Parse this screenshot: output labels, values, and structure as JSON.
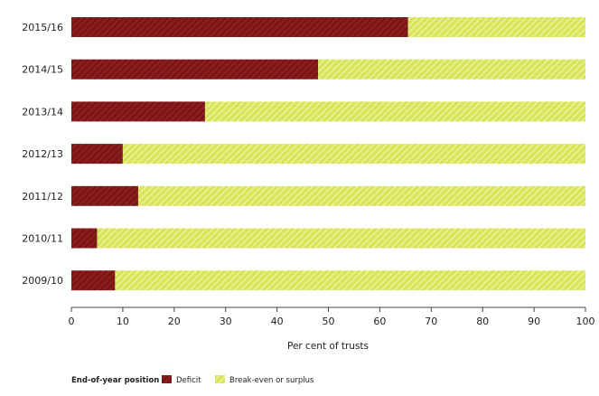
{
  "chart_data": {
    "type": "bar",
    "orientation": "horizontal",
    "stacked": true,
    "categories": [
      "2015/16",
      "2014/15",
      "2013/14",
      "2012/13",
      "2011/12",
      "2010/11",
      "2009/10"
    ],
    "series": [
      {
        "name": "Deficit",
        "values": [
          65.5,
          48,
          26,
          10,
          13,
          5,
          8.5
        ],
        "color": "#8b1c1c",
        "stripe": "#5e1010"
      },
      {
        "name": "Break-even or surplus",
        "values": [
          34.5,
          52,
          74,
          90,
          87,
          95,
          91.5
        ],
        "color": "#d8e55a",
        "stripe": "#f2f7b8"
      }
    ],
    "xlim": [
      0,
      100
    ],
    "xticks": [
      "0",
      "10",
      "20",
      "30",
      "40",
      "50",
      "60",
      "70",
      "80",
      "90",
      "100"
    ],
    "xlabel": "Per cent of trusts",
    "ylabel": "",
    "title": "",
    "legend": {
      "title": "End-of-year position",
      "position": "bottom-left"
    }
  }
}
